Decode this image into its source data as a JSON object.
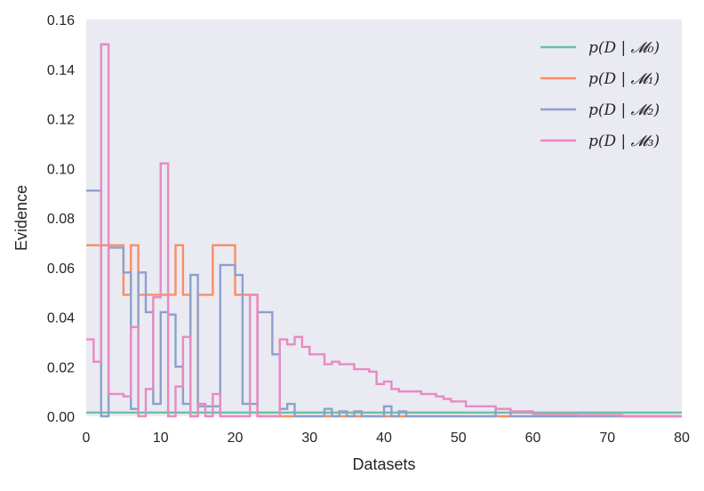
{
  "chart_data": {
    "type": "line",
    "step": true,
    "title": "",
    "xlabel": "Datasets",
    "ylabel": "Evidence",
    "xlim": [
      0,
      80
    ],
    "ylim": [
      0,
      0.16
    ],
    "xticks": [
      0,
      10,
      20,
      30,
      40,
      50,
      60,
      70,
      80
    ],
    "yticks": [
      0.0,
      0.02,
      0.04,
      0.06,
      0.08,
      0.1,
      0.12,
      0.14,
      0.16
    ],
    "xtick_labels": [
      "0",
      "10",
      "20",
      "30",
      "40",
      "50",
      "60",
      "70",
      "80"
    ],
    "ytick_labels": [
      "0.00",
      "0.02",
      "0.04",
      "0.06",
      "0.08",
      "0.10",
      "0.12",
      "0.14",
      "0.16"
    ],
    "grid": false,
    "background": "#eaeaf2",
    "legend_position": "top-right",
    "series": [
      {
        "name": "p(D | 𝓜₀)",
        "color": "#66c2a5",
        "x": [
          0,
          80
        ],
        "y": [
          0.0015,
          0.0015
        ]
      },
      {
        "name": "p(D | 𝓜₁)",
        "color": "#fc8d62",
        "x": [
          0,
          5,
          6,
          7,
          8,
          12,
          13,
          14,
          15,
          17,
          19,
          20,
          22,
          23,
          80
        ],
        "y": [
          0.069,
          0.049,
          0.069,
          0.049,
          0.049,
          0.069,
          0.049,
          0.0,
          0.049,
          0.069,
          0.069,
          0.049,
          0.049,
          0.0,
          0.0
        ]
      },
      {
        "name": "p(D | 𝓜₂)",
        "color": "#8da0cb",
        "x": [
          0,
          2,
          3,
          5,
          6,
          7,
          8,
          9,
          10,
          11,
          12,
          13,
          14,
          15,
          17,
          18,
          20,
          21,
          23,
          24,
          25,
          26,
          27,
          28,
          32,
          33,
          34,
          35,
          36,
          37,
          39,
          40,
          41,
          42,
          43,
          55,
          57,
          60,
          80
        ],
        "y": [
          0.091,
          0.0,
          0.068,
          0.058,
          0.003,
          0.058,
          0.042,
          0.005,
          0.042,
          0.041,
          0.02,
          0.005,
          0.057,
          0.004,
          0.004,
          0.061,
          0.057,
          0.005,
          0.042,
          0.042,
          0.025,
          0.003,
          0.005,
          0.0,
          0.003,
          0.0,
          0.002,
          0.0,
          0.002,
          0.0,
          0.0,
          0.004,
          0.0,
          0.002,
          0.0,
          0.003,
          0.0,
          0.0,
          0.0
        ]
      },
      {
        "name": "p(D | 𝓜₃)",
        "color": "#e78ac3",
        "x": [
          0,
          1,
          2,
          3,
          5,
          6,
          7,
          8,
          9,
          10,
          11,
          12,
          13,
          14,
          15,
          16,
          17,
          18,
          19,
          20,
          21,
          22,
          23,
          24,
          25,
          26,
          27,
          28,
          29,
          30,
          31,
          32,
          33,
          34,
          35,
          36,
          37,
          38,
          39,
          40,
          41,
          42,
          43,
          44,
          45,
          46,
          47,
          48,
          49,
          50,
          51,
          52,
          53,
          54,
          55,
          56,
          57,
          58,
          59,
          60,
          62,
          64,
          66,
          68,
          70,
          72,
          80
        ],
        "y": [
          0.031,
          0.022,
          0.15,
          0.009,
          0.008,
          0.036,
          0.0,
          0.011,
          0.048,
          0.102,
          0.0,
          0.012,
          0.032,
          0.0,
          0.005,
          0.0,
          0.009,
          0.0,
          0.0,
          0.0,
          0.0,
          0.049,
          0.0,
          0.0,
          0.0,
          0.031,
          0.029,
          0.032,
          0.028,
          0.025,
          0.025,
          0.021,
          0.022,
          0.021,
          0.021,
          0.019,
          0.019,
          0.018,
          0.013,
          0.014,
          0.011,
          0.01,
          0.01,
          0.01,
          0.009,
          0.009,
          0.008,
          0.007,
          0.006,
          0.006,
          0.004,
          0.004,
          0.004,
          0.004,
          0.003,
          0.003,
          0.002,
          0.002,
          0.002,
          0.001,
          0.001,
          0.001,
          0.0005,
          0.0005,
          0.0005,
          0.0,
          0.0
        ]
      }
    ]
  }
}
